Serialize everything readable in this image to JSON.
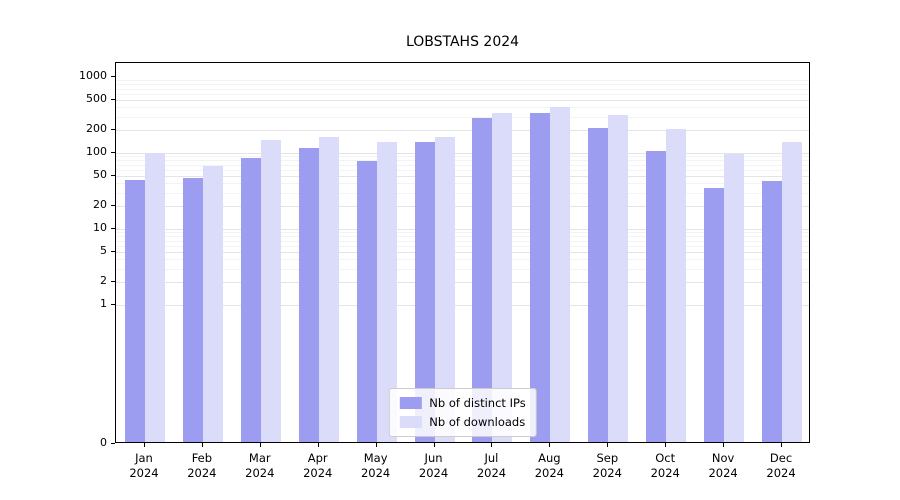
{
  "title": "LOBSTAHS 2024",
  "colors": {
    "ips": "#9c9cf0",
    "downloads": "#dbdbfa",
    "grid_major": "#e4e4e4",
    "grid_minor": "#f3f3f3",
    "axis": "#000000"
  },
  "legend": {
    "items": [
      {
        "label": "Nb of distinct IPs",
        "series": "ips"
      },
      {
        "label": "Nb of downloads",
        "series": "downloads"
      }
    ],
    "position": "lower center"
  },
  "chart_data": {
    "type": "bar",
    "title": "LOBSTAHS 2024",
    "xlabel": "",
    "ylabel": "",
    "yscale": "log",
    "ylim": [
      0,
      1000
    ],
    "yticks": [
      1000,
      500,
      200,
      100,
      50,
      20,
      10,
      5,
      2,
      1,
      0
    ],
    "grid": true,
    "legend_position": "lower center",
    "categories": [
      "Jan 2024",
      "Feb 2024",
      "Mar 2024",
      "Apr 2024",
      "May 2024",
      "Jun 2024",
      "Jul 2024",
      "Aug 2024",
      "Sep 2024",
      "Oct 2024",
      "Nov 2024",
      "Dec 2024"
    ],
    "series": [
      {
        "name": "Nb of distinct IPs",
        "color": "#9c9cf0",
        "values": [
          42,
          44,
          80,
          110,
          73,
          130,
          270,
          320,
          200,
          100,
          33,
          40
        ]
      },
      {
        "name": "Nb of downloads",
        "color": "#dbdbfa",
        "values": [
          95,
          63,
          140,
          155,
          130,
          155,
          320,
          380,
          300,
          195,
          92,
          130
        ]
      }
    ]
  }
}
